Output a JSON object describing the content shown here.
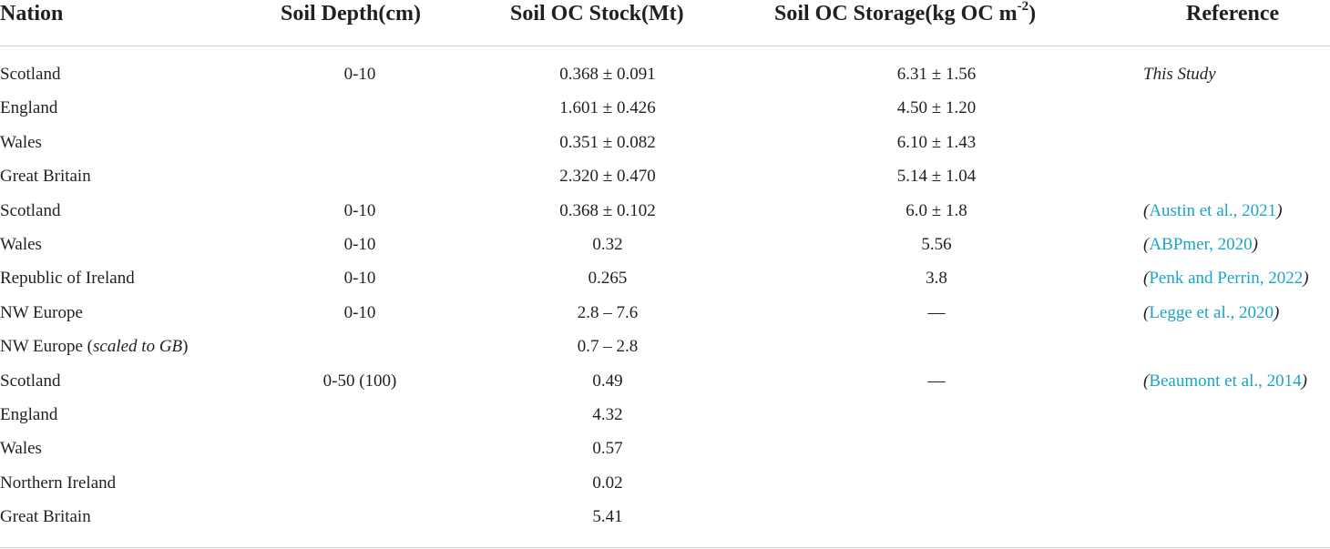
{
  "table": {
    "headers": {
      "nation": "Nation",
      "depth": "Soil Depth(cm)",
      "stock": "Soil OC Stock(Mt)",
      "storage_main": "Soil OC Storage(kg OC m",
      "storage_sup": "-2",
      "storage_close": ")",
      "reference": "Reference"
    },
    "rows": [
      {
        "nation": "Scotland",
        "depth": "0-10",
        "stock": "0.368 ± 0.091",
        "storage": "6.31 ± 1.56",
        "ref_open": "",
        "ref_cite": "",
        "ref_close": "",
        "ref_plain": "This Study"
      },
      {
        "nation": "England",
        "depth": "",
        "stock": "1.601 ± 0.426",
        "storage": "4.50 ± 1.20",
        "ref_open": "",
        "ref_cite": "",
        "ref_close": "",
        "ref_plain": ""
      },
      {
        "nation": "Wales",
        "depth": "",
        "stock": "0.351 ± 0.082",
        "storage": "6.10 ± 1.43",
        "ref_open": "",
        "ref_cite": "",
        "ref_close": "",
        "ref_plain": ""
      },
      {
        "nation": "Great Britain",
        "depth": "",
        "stock": "2.320 ± 0.470",
        "storage": "5.14 ± 1.04",
        "ref_open": "",
        "ref_cite": "",
        "ref_close": "",
        "ref_plain": ""
      },
      {
        "nation": "Scotland",
        "depth": "0-10",
        "stock": "0.368 ± 0.102",
        "storage": "6.0 ± 1.8",
        "ref_open": "(",
        "ref_cite": "Austin et al., 2021",
        "ref_close": ")",
        "ref_plain": ""
      },
      {
        "nation": "Wales",
        "depth": "0-10",
        "stock": "0.32",
        "storage": "5.56",
        "ref_open": "(",
        "ref_cite": "ABPmer, 2020",
        "ref_close": ")",
        "ref_plain": ""
      },
      {
        "nation": "Republic of Ireland",
        "depth": "0-10",
        "stock": "0.265",
        "storage": "3.8",
        "ref_open": "(",
        "ref_cite": "Penk and Perrin, 2022",
        "ref_close": ")",
        "ref_plain": ""
      },
      {
        "nation": "NW Europe",
        "depth": "0-10",
        "stock": "2.8 – 7.6",
        "storage": "—",
        "ref_open": "(",
        "ref_cite": "Legge et al., 2020",
        "ref_close": ")",
        "ref_plain": ""
      },
      {
        "nation": "NW Europe (",
        "nation_italic": "scaled to GB",
        "nation_tail": ")",
        "depth": "",
        "stock": "0.7 – 2.8",
        "storage": "",
        "ref_open": "",
        "ref_cite": "",
        "ref_close": "",
        "ref_plain": ""
      },
      {
        "nation": "Scotland",
        "depth": "0-50 (100)",
        "stock": "0.49",
        "storage": "—",
        "ref_open": "(",
        "ref_cite": "Beaumont et al., 2014",
        "ref_close": ")",
        "ref_plain": ""
      },
      {
        "nation": "England",
        "depth": "",
        "stock": "4.32",
        "storage": "",
        "ref_open": "",
        "ref_cite": "",
        "ref_close": "",
        "ref_plain": ""
      },
      {
        "nation": "Wales",
        "depth": "",
        "stock": "0.57",
        "storage": "",
        "ref_open": "",
        "ref_cite": "",
        "ref_close": "",
        "ref_plain": ""
      },
      {
        "nation": "Northern Ireland",
        "depth": "",
        "stock": "0.02",
        "storage": "",
        "ref_open": "",
        "ref_cite": "",
        "ref_close": "",
        "ref_plain": ""
      },
      {
        "nation": "Great Britain",
        "depth": "",
        "stock": "5.41",
        "storage": "",
        "ref_open": "",
        "ref_cite": "",
        "ref_close": "",
        "ref_plain": ""
      }
    ]
  },
  "colors": {
    "text": "#231f20",
    "citation_link": "#1aa4c8",
    "rule": "#cfcfcf"
  }
}
